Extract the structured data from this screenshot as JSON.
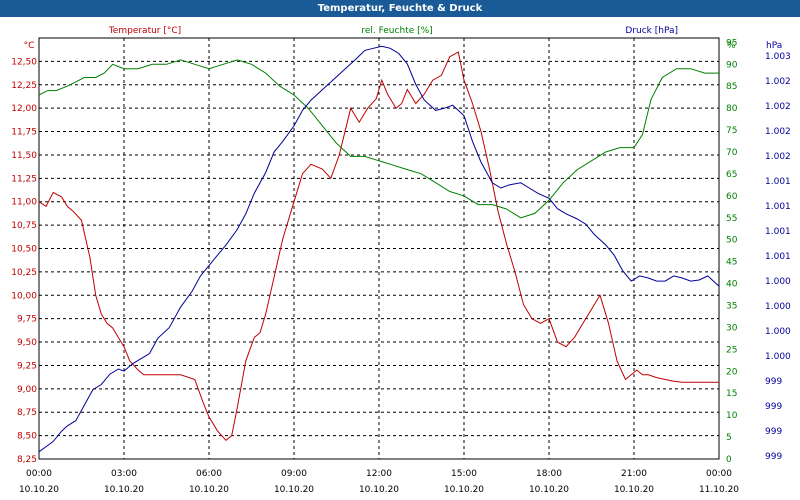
{
  "chart_data": {
    "type": "line",
    "title": "Temperatur, Feuchte & Druck",
    "x_tick_labels": [
      [
        "00:00",
        "10.10.20"
      ],
      [
        "03:00",
        "10.10.20"
      ],
      [
        "06:00",
        "10.10.20"
      ],
      [
        "09:00",
        "10.10.20"
      ],
      [
        "12:00",
        "10.10.20"
      ],
      [
        "15:00",
        "10.10.20"
      ],
      [
        "18:00",
        "10.10.20"
      ],
      [
        "21:00",
        "10.10.20"
      ],
      [
        "00:00",
        "11.10.20"
      ]
    ],
    "x_range_hours": [
      0,
      24
    ],
    "axes": {
      "temperature": {
        "label": "Temperatur [°C]",
        "unit": "°C",
        "color": "#c00000",
        "range": [
          8.25,
          12.75
        ],
        "ticks": [
          "8,25",
          "8,50",
          "8,75",
          "9,00",
          "9,25",
          "9,50",
          "9,75",
          "10,00",
          "10,25",
          "10,50",
          "10,75",
          "11,00",
          "11,25",
          "11,50",
          "11,75",
          "12,00",
          "12,25",
          "12,50"
        ]
      },
      "humidity": {
        "label": "rel. Feuchte [%]",
        "unit": "%",
        "color": "#008000",
        "range": [
          0,
          96
        ],
        "ticks": [
          "0",
          "5",
          "10",
          "15",
          "20",
          "25",
          "30",
          "35",
          "40",
          "45",
          "50",
          "55",
          "60",
          "65",
          "70",
          "75",
          "80",
          "85",
          "90",
          "95"
        ]
      },
      "pressure": {
        "label": "Druck [hPa]",
        "unit": "hPa",
        "color": "#000099",
        "range": [
          998.93,
          1003.0
        ],
        "ticks": [
          "999",
          "999",
          "999",
          "999",
          "1.000",
          "1.000",
          "1.000",
          "1.000",
          "1.001",
          "1.001",
          "1.001",
          "1.001",
          "1.002",
          "1.002",
          "1.002",
          "1.002",
          "1.003"
        ]
      }
    },
    "series": [
      {
        "name": "Temperatur",
        "axis": "temperature",
        "color": "#c00000",
        "x": [
          0,
          0.25,
          0.5,
          0.8,
          1,
          1.2,
          1.5,
          1.8,
          2.0,
          2.2,
          2.4,
          2.6,
          2.8,
          3.0,
          3.2,
          3.5,
          3.7,
          4.0,
          4.5,
          5.0,
          5.5,
          5.8,
          6.0,
          6.3,
          6.6,
          6.8,
          7.0,
          7.3,
          7.6,
          7.8,
          8.0,
          8.3,
          8.6,
          9.0,
          9.3,
          9.6,
          10.0,
          10.3,
          10.6,
          11.0,
          11.3,
          11.6,
          11.9,
          12.1,
          12.3,
          12.6,
          12.8,
          13.0,
          13.3,
          13.6,
          13.9,
          14.2,
          14.5,
          14.8,
          15.0,
          15.3,
          15.6,
          15.9,
          16.2,
          16.5,
          16.8,
          17.1,
          17.4,
          17.7,
          18.0,
          18.3,
          18.6,
          18.9,
          19.2,
          19.5,
          19.8,
          20.1,
          20.4,
          20.7,
          20.9,
          21.1,
          21.3,
          21.5,
          21.8,
          22.1,
          22.4,
          22.7,
          23.0,
          23.3,
          23.6,
          24.0
        ],
        "values": [
          11.0,
          10.95,
          11.1,
          11.05,
          10.95,
          10.9,
          10.8,
          10.4,
          10.0,
          9.8,
          9.7,
          9.65,
          9.55,
          9.45,
          9.3,
          9.2,
          9.15,
          9.15,
          9.15,
          9.15,
          9.1,
          8.85,
          8.7,
          8.55,
          8.45,
          8.5,
          8.8,
          9.3,
          9.55,
          9.6,
          9.8,
          10.2,
          10.6,
          11.0,
          11.3,
          11.4,
          11.35,
          11.25,
          11.5,
          12.0,
          11.85,
          12.0,
          12.1,
          12.3,
          12.15,
          12.0,
          12.05,
          12.2,
          12.05,
          12.15,
          12.3,
          12.35,
          12.55,
          12.6,
          12.3,
          12.05,
          11.75,
          11.35,
          10.9,
          10.55,
          10.25,
          9.9,
          9.75,
          9.7,
          9.75,
          9.5,
          9.45,
          9.55,
          9.7,
          9.85,
          10.0,
          9.7,
          9.3,
          9.1,
          9.15,
          9.2,
          9.15,
          9.15,
          9.12,
          9.1,
          9.08,
          9.07,
          9.07,
          9.07,
          9.07,
          9.07
        ]
      },
      {
        "name": "rel. Feuchte",
        "axis": "humidity",
        "color": "#008000",
        "x": [
          0,
          0.3,
          0.6,
          1.0,
          1.3,
          1.6,
          2.0,
          2.3,
          2.6,
          3.0,
          3.5,
          4.0,
          4.5,
          5.0,
          5.5,
          6.0,
          6.5,
          7.0,
          7.5,
          8.0,
          8.5,
          9.0,
          9.5,
          10.0,
          10.5,
          11.0,
          11.5,
          12.0,
          12.5,
          13.0,
          13.5,
          14.0,
          14.5,
          15.0,
          15.5,
          16.0,
          16.5,
          17.0,
          17.5,
          18.0,
          18.5,
          19.0,
          19.5,
          20.0,
          20.5,
          21.0,
          21.3,
          21.6,
          22.0,
          22.5,
          23.0,
          23.5,
          24.0
        ],
        "values": [
          83,
          84,
          84,
          85,
          86,
          87,
          87,
          88,
          90,
          89,
          89,
          90,
          90,
          91,
          90,
          89,
          90,
          91,
          90,
          88,
          85,
          83,
          80,
          76,
          72,
          69,
          69,
          68,
          67,
          66,
          65,
          63,
          61,
          60,
          58,
          58,
          57,
          55,
          56,
          59,
          63,
          66,
          68,
          70,
          71,
          71,
          74,
          82,
          87,
          89,
          89,
          88,
          88
        ]
      },
      {
        "name": "Druck",
        "axis": "pressure",
        "color": "#000099",
        "x": [
          0,
          0.25,
          0.5,
          0.8,
          1.0,
          1.3,
          1.6,
          1.9,
          2.2,
          2.5,
          2.8,
          3.0,
          3.3,
          3.6,
          3.9,
          4.2,
          4.6,
          5.0,
          5.4,
          5.7,
          6.0,
          6.3,
          6.6,
          7.0,
          7.3,
          7.6,
          8.0,
          8.3,
          8.6,
          9.0,
          9.3,
          9.6,
          10.0,
          10.4,
          10.8,
          11.2,
          11.5,
          11.8,
          12.1,
          12.4,
          12.7,
          13.0,
          13.3,
          13.6,
          14.0,
          14.3,
          14.6,
          15.0,
          15.3,
          15.6,
          16.0,
          16.3,
          16.6,
          17.0,
          17.3,
          17.6,
          18.0,
          18.3,
          18.6,
          19.0,
          19.3,
          19.6,
          20.0,
          20.3,
          20.6,
          20.9,
          21.2,
          21.5,
          21.8,
          22.1,
          22.4,
          22.7,
          23.0,
          23.3,
          23.6,
          24.0
        ],
        "values": [
          999.0,
          999.05,
          999.1,
          999.2,
          999.25,
          999.3,
          999.45,
          999.6,
          999.65,
          999.75,
          999.8,
          999.78,
          999.85,
          999.9,
          999.95,
          1000.1,
          1000.2,
          1000.4,
          1000.55,
          1000.7,
          1000.8,
          1000.9,
          1001.0,
          1001.15,
          1001.3,
          1001.5,
          1001.7,
          1001.9,
          1002.0,
          1002.15,
          1002.3,
          1002.4,
          1002.5,
          1002.6,
          1002.7,
          1002.8,
          1002.88,
          1002.9,
          1002.92,
          1002.9,
          1002.85,
          1002.75,
          1002.55,
          1002.4,
          1002.3,
          1002.32,
          1002.35,
          1002.25,
          1002.0,
          1001.8,
          1001.6,
          1001.55,
          1001.58,
          1001.6,
          1001.55,
          1001.5,
          1001.45,
          1001.35,
          1001.3,
          1001.25,
          1001.2,
          1001.1,
          1001.0,
          1000.9,
          1000.75,
          1000.65,
          1000.7,
          1000.68,
          1000.65,
          1000.65,
          1000.7,
          1000.68,
          1000.65,
          1000.66,
          1000.7,
          1000.6
        ]
      }
    ],
    "grid": true
  }
}
